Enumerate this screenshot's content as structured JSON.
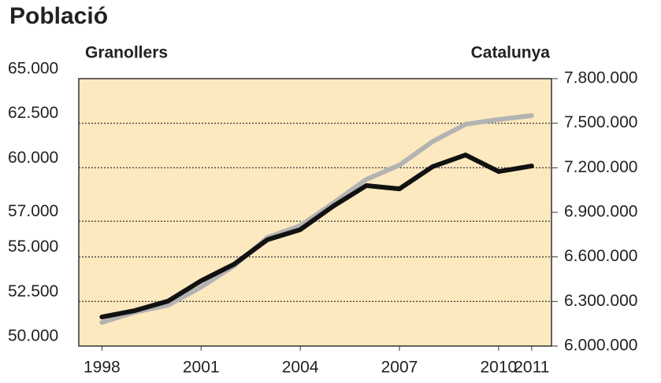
{
  "chart_data": {
    "type": "line",
    "title": "Població",
    "x": [
      1998,
      1999,
      2000,
      2001,
      2002,
      2003,
      2004,
      2005,
      2006,
      2007,
      2008,
      2009,
      2010,
      2011
    ],
    "series": [
      {
        "name": "Granollers",
        "color": "#111111",
        "axis": "y",
        "values": [
          51630,
          51990,
          52520,
          53660,
          54590,
          55960,
          56530,
          57850,
          59000,
          58820,
          60060,
          60720,
          59790,
          60100
        ]
      },
      {
        "name": "Catalunya",
        "color": "#b3b3b3",
        "axis": "y2",
        "values": [
          6159000,
          6228000,
          6275000,
          6397000,
          6540000,
          6730000,
          6810000,
          6963000,
          7122000,
          7218000,
          7376000,
          7493000,
          7525000,
          7551000
        ]
      }
    ],
    "xlim": [
      1997.3,
      2011.6
    ],
    "xticks": [
      1998,
      2001,
      2004,
      2007,
      2010,
      2011
    ],
    "ylim": [
      50000,
      65000
    ],
    "yticks": [
      {
        "value": 50000,
        "label": "50.000"
      },
      {
        "value": 52500,
        "label": "52.500"
      },
      {
        "value": 55000,
        "label": "55.000"
      },
      {
        "value": 57000,
        "label": "57.000"
      },
      {
        "value": 60000,
        "label": "60.000"
      },
      {
        "value": 62500,
        "label": "62.500"
      },
      {
        "value": 65000,
        "label": "65.000"
      }
    ],
    "y2lim": [
      6000000,
      7800000
    ],
    "y2ticks": [
      {
        "value": 6000000,
        "label": "6.000.000"
      },
      {
        "value": 6300000,
        "label": "6.300.000"
      },
      {
        "value": 6600000,
        "label": "6.600.000"
      },
      {
        "value": 6900000,
        "label": "6.900.000"
      },
      {
        "value": 7200000,
        "label": "7.200.000"
      },
      {
        "value": 7500000,
        "label": "7.500.000"
      },
      {
        "value": 7800000,
        "label": "7.800.000"
      }
    ],
    "grid": true
  }
}
